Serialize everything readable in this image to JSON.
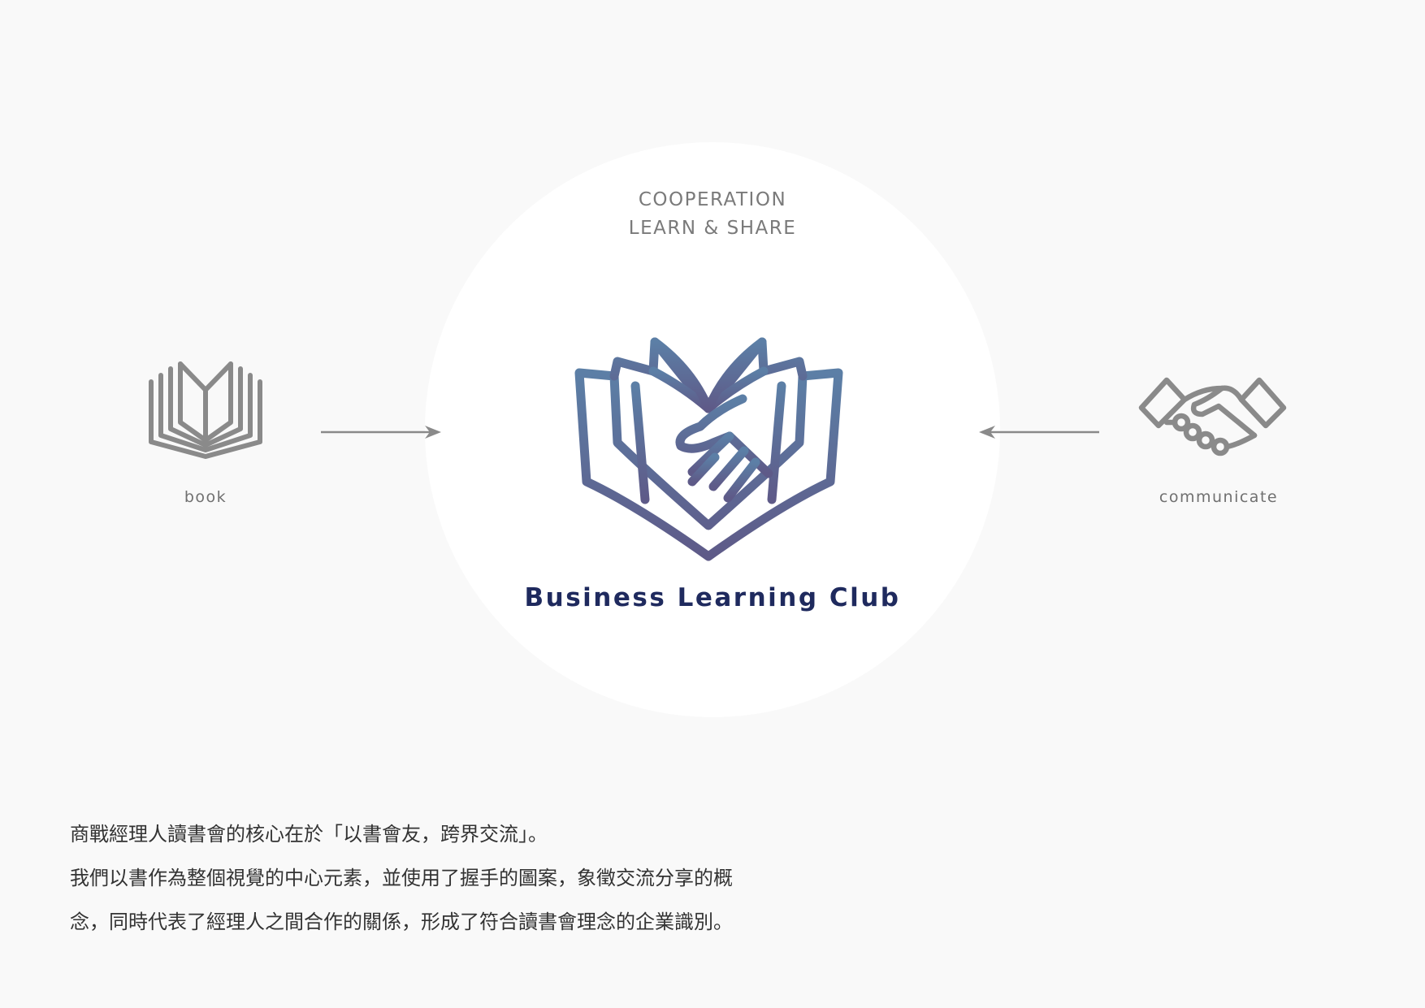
{
  "center": {
    "tagline_line1": "COOPERATION",
    "tagline_line2": "LEARN & SHARE",
    "brand_name": "Business Learning Club"
  },
  "left": {
    "icon": "open-book-icon",
    "label": "book"
  },
  "right": {
    "icon": "handshake-icon",
    "label": "communicate"
  },
  "description": {
    "lines": [
      "商戰經理人讀書會的核心在於「以書會友，跨界交流」。",
      "我們以書作為整個視覺的中心元素，並使用了握手的圖案，象徵交流分享的概",
      "念，同時代表了經理人之間合作的關係，形成了符合讀書會理念的企業識別。"
    ]
  },
  "colors": {
    "background": "#f9f9f9",
    "circle": "#ffffff",
    "icon_gray": "#8a8a8a",
    "logo_gradient_top": "#5c7fa6",
    "logo_gradient_bottom": "#5e5a88",
    "brand_text": "#1f2a5e"
  }
}
